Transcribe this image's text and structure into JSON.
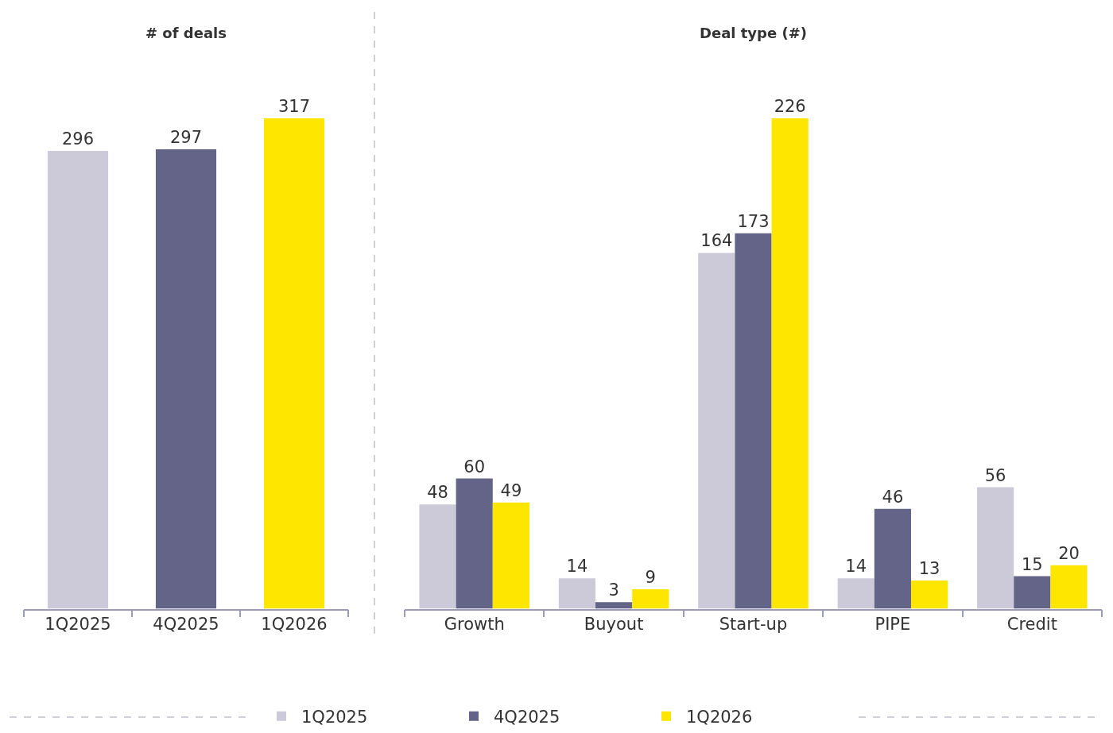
{
  "chart_data": [
    {
      "type": "bar",
      "title": "# of deals",
      "categories": [
        "1Q2025",
        "4Q2025",
        "1Q2026"
      ],
      "values": [
        296,
        297,
        317
      ],
      "colors": [
        "#cccad8",
        "#646488",
        "#ffe600"
      ],
      "data_labels": true
    },
    {
      "type": "bar",
      "title": "Deal type (#)",
      "categories": [
        "Growth",
        "Buyout",
        "Start-up",
        "PIPE",
        "Credit"
      ],
      "series": [
        {
          "name": "1Q2025",
          "color": "#cccad8",
          "values": [
            48,
            14,
            164,
            14,
            56
          ]
        },
        {
          "name": "4Q2025",
          "color": "#646488",
          "values": [
            60,
            3,
            173,
            46,
            15
          ]
        },
        {
          "name": "1Q2026",
          "color": "#ffe600",
          "values": [
            49,
            9,
            226,
            13,
            20
          ]
        }
      ],
      "data_labels": true,
      "legend": "bottom"
    }
  ]
}
